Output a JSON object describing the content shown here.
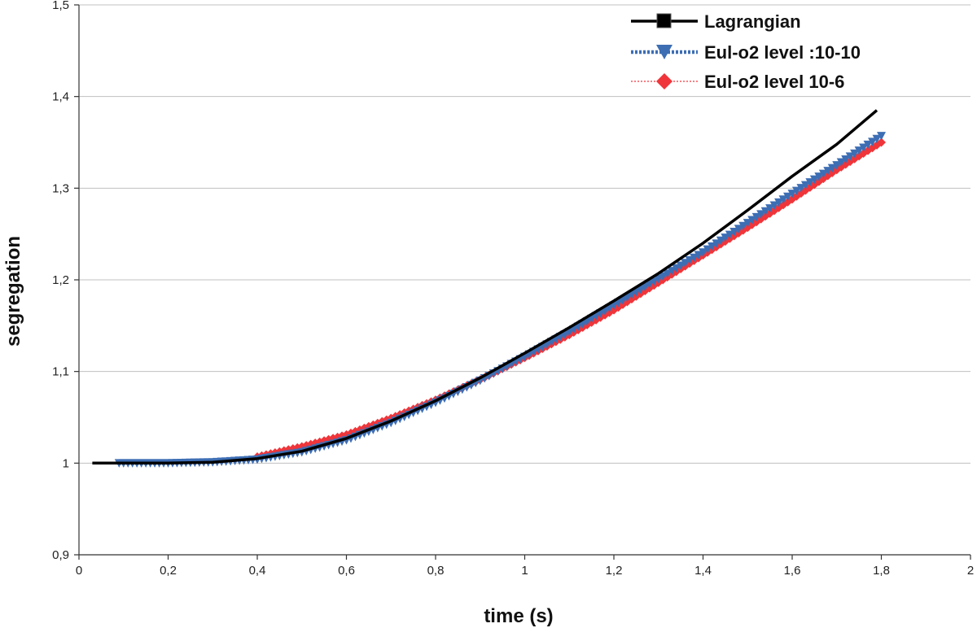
{
  "chart_data": {
    "type": "line",
    "title": "",
    "xlabel": "time (s)",
    "ylabel": "segregation",
    "xlim": [
      0,
      2
    ],
    "ylim": [
      0.9,
      1.5
    ],
    "xticks": [
      "0",
      "0,2",
      "0,4",
      "0,6",
      "0,8",
      "1",
      "1,2",
      "1,4",
      "1,6",
      "1,8",
      "2"
    ],
    "yticks": [
      "0,9",
      "1",
      "1,1",
      "1,2",
      "1,3",
      "1,4",
      "1,5"
    ],
    "grid": "horizontal",
    "legend_position": "top-right",
    "series": [
      {
        "name": "Lagrangian",
        "color": "#000000",
        "line": "solid",
        "marker": "square",
        "x": [
          0.03,
          0.1,
          0.2,
          0.3,
          0.4,
          0.5,
          0.6,
          0.7,
          0.8,
          0.9,
          1.0,
          1.1,
          1.2,
          1.3,
          1.4,
          1.5,
          1.6,
          1.7,
          1.79
        ],
        "y": [
          1.0,
          1.0,
          1.0,
          1.001,
          1.005,
          1.013,
          1.027,
          1.046,
          1.068,
          1.093,
          1.12,
          1.148,
          1.177,
          1.207,
          1.24,
          1.276,
          1.313,
          1.348,
          1.385
        ]
      },
      {
        "name": "Eul-o2 level :10-10",
        "color": "#3d6eb4",
        "line": "dotted",
        "marker": "triangle-down",
        "x": [
          0.09,
          0.2,
          0.3,
          0.4,
          0.5,
          0.6,
          0.7,
          0.8,
          0.9,
          1.0,
          1.1,
          1.2,
          1.3,
          1.4,
          1.5,
          1.6,
          1.7,
          1.8
        ],
        "y": [
          1.0,
          1.0,
          1.001,
          1.004,
          1.012,
          1.025,
          1.044,
          1.066,
          1.09,
          1.116,
          1.143,
          1.172,
          1.201,
          1.23,
          1.262,
          1.294,
          1.325,
          1.357
        ]
      },
      {
        "name": "Eul-o2 level 10-6",
        "color": "#f0353a",
        "line": "dotted",
        "marker": "diamond",
        "x": [
          0.4,
          0.5,
          0.6,
          0.7,
          0.8,
          0.9,
          1.0,
          1.1,
          1.2,
          1.3,
          1.4,
          1.5,
          1.6,
          1.7,
          1.8
        ],
        "y": [
          1.007,
          1.018,
          1.031,
          1.049,
          1.069,
          1.091,
          1.115,
          1.14,
          1.167,
          1.197,
          1.227,
          1.257,
          1.288,
          1.32,
          1.35
        ]
      }
    ]
  }
}
